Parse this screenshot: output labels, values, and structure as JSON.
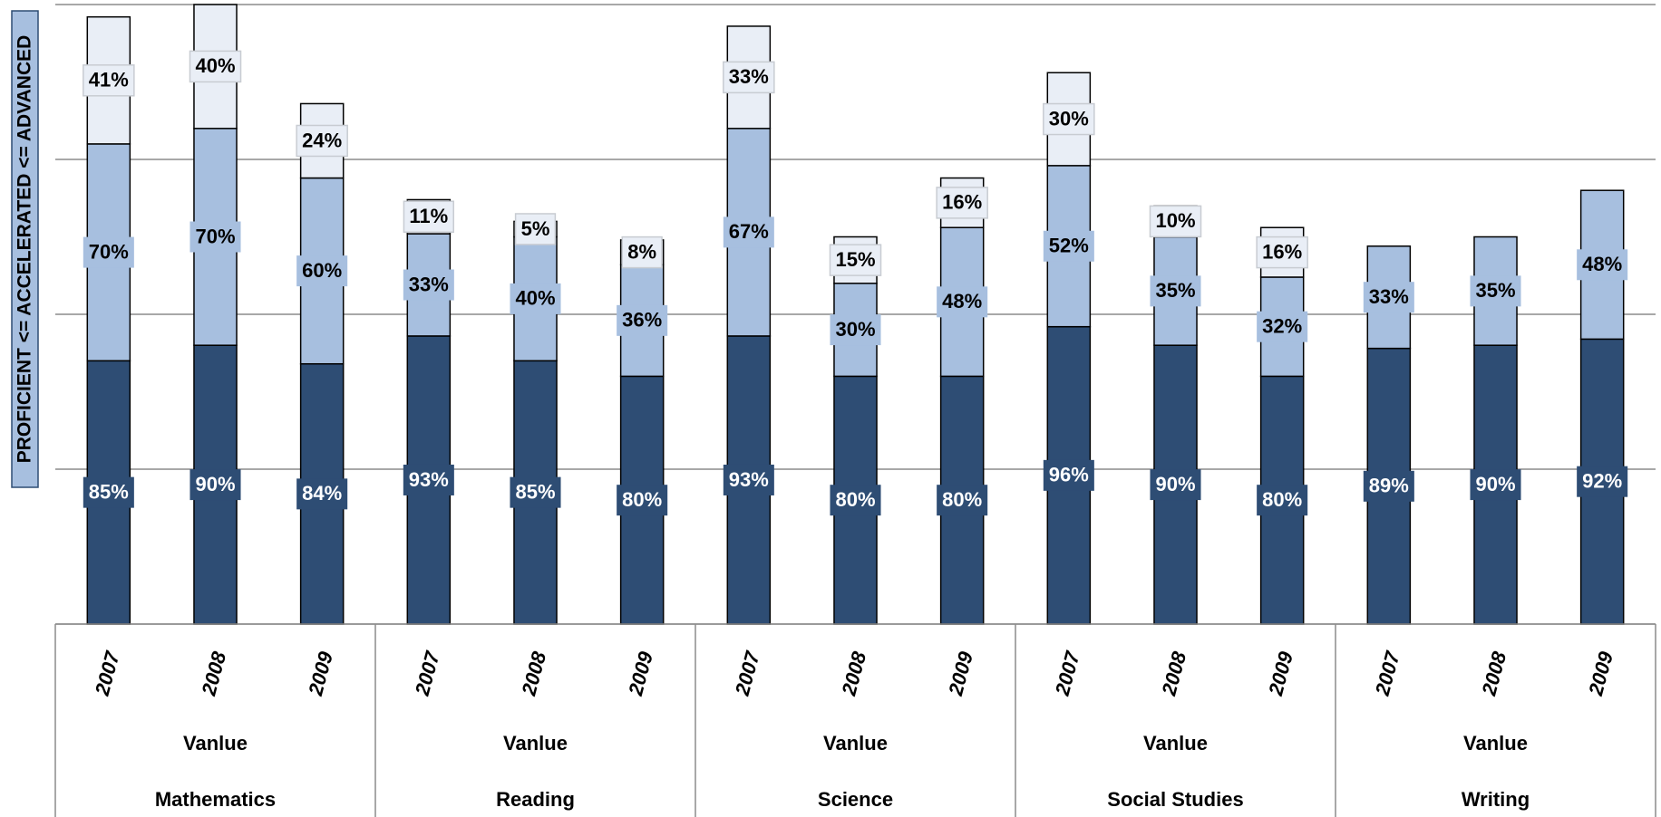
{
  "chart_data": {
    "type": "stacked_bar",
    "y_label": "PROFICIENT <= ACCELERATED <= ADVANCED",
    "categories": [
      "2007",
      "2008",
      "2009",
      "2007",
      "2008",
      "2009",
      "2007",
      "2008",
      "2009",
      "2007",
      "2008",
      "2009",
      "2007",
      "2008",
      "2009"
    ],
    "groups": [
      {
        "school": "Vanlue",
        "subject": "Mathematics"
      },
      {
        "school": "Vanlue",
        "subject": "Reading"
      },
      {
        "school": "Vanlue",
        "subject": "Science"
      },
      {
        "school": "Vanlue",
        "subject": "Social Studies"
      },
      {
        "school": "Vanlue",
        "subject": "Writing"
      }
    ],
    "series": [
      {
        "color": "#2e4d74",
        "values": [
          85,
          90,
          84,
          93,
          85,
          80,
          93,
          80,
          80,
          96,
          90,
          80,
          89,
          90,
          92
        ],
        "value_labels": [
          "85%",
          "90%",
          "84%",
          "93%",
          "85%",
          "80%",
          "93%",
          "80%",
          "80%",
          "96%",
          "90%",
          "80%",
          "89%",
          "90%",
          "92%"
        ]
      },
      {
        "color": "#a7bfdf",
        "values": [
          70,
          70,
          60,
          33,
          40,
          36,
          67,
          30,
          48,
          52,
          35,
          32,
          33,
          35,
          48
        ],
        "value_labels": [
          "70%",
          "70%",
          "60%",
          "33%",
          "40%",
          "36%",
          "67%",
          "30%",
          "48%",
          "52%",
          "35%",
          "32%",
          "33%",
          "35%",
          "48%"
        ]
      },
      {
        "color": "#e9eef6",
        "values": [
          41,
          40,
          24,
          11,
          5,
          8,
          33,
          15,
          16,
          30,
          10,
          16,
          null,
          null,
          null
        ],
        "value_labels": [
          "41%",
          "40%",
          "24%",
          "11%",
          "5%",
          "8%",
          "33%",
          "15%",
          "16%",
          "30%",
          "10%",
          "16%",
          null,
          null,
          null
        ]
      }
    ],
    "ylim": [
      0,
      200
    ],
    "yticks": [
      0,
      50,
      100,
      150,
      200
    ],
    "grid": true
  }
}
